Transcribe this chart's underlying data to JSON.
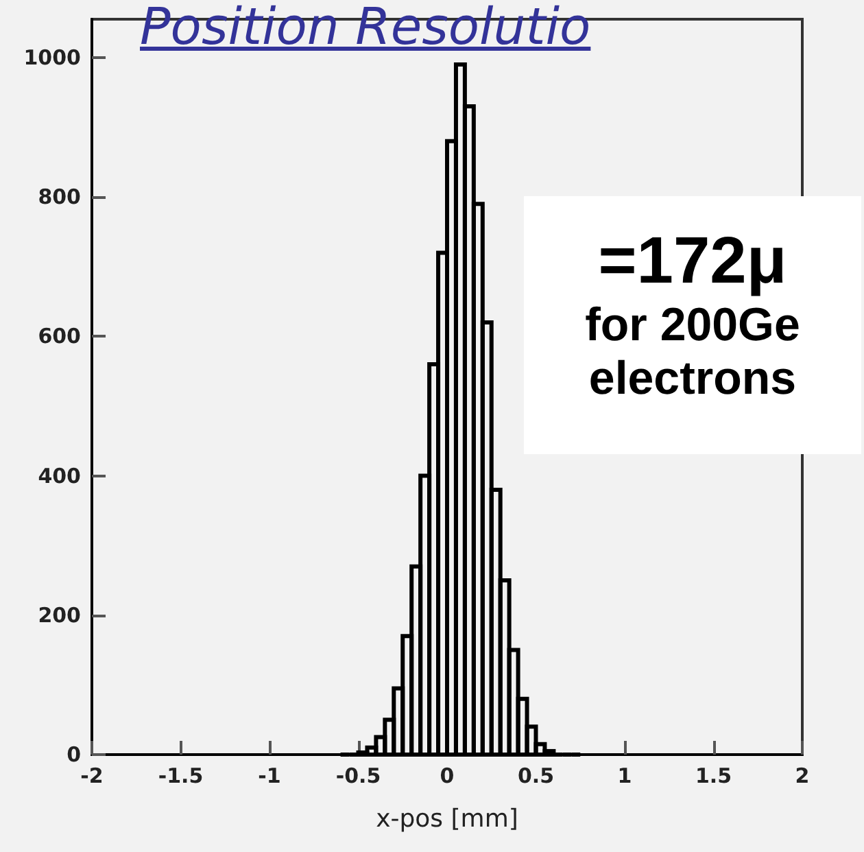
{
  "chart_data": {
    "type": "histogram",
    "title": "Position Resolutio",
    "xlabel": "x-pos [mm]",
    "annotations": [
      "=172μ",
      "for 200Ge",
      "electrons"
    ],
    "bins": [
      -0.6,
      -0.55,
      -0.5,
      -0.45,
      -0.4,
      -0.35,
      -0.3,
      -0.25,
      -0.2,
      -0.15,
      -0.1,
      -0.05,
      0,
      0.05,
      0.1,
      0.15,
      0.2,
      0.25,
      0.3,
      0.35,
      0.4,
      0.45,
      0.5,
      0.55,
      0.6,
      0.65,
      0.7,
      0.75
    ],
    "values": [
      0,
      0,
      3,
      10,
      25,
      50,
      95,
      170,
      270,
      400,
      560,
      720,
      880,
      990,
      930,
      790,
      620,
      380,
      250,
      150,
      80,
      40,
      15,
      5,
      0,
      0,
      0
    ],
    "color": "#000000",
    "xlim": [
      -2,
      2
    ],
    "xticks": [
      -2,
      -1.5,
      -1,
      -0.5,
      0,
      0.5,
      1,
      1.5,
      2
    ],
    "ylim": [
      0,
      1055
    ],
    "yticks": [
      0,
      200,
      400,
      600,
      800,
      1000
    ],
    "grid": false
  }
}
